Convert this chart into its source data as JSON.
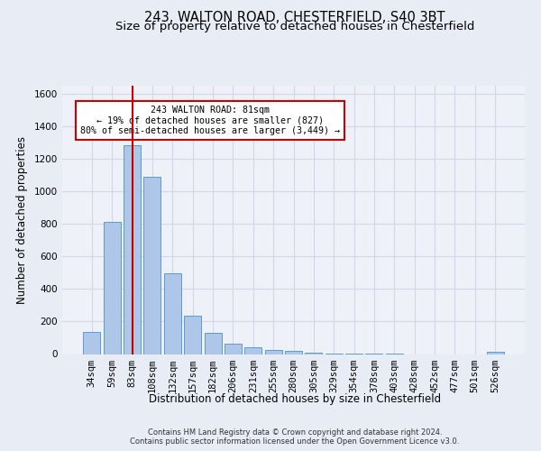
{
  "title_line1": "243, WALTON ROAD, CHESTERFIELD, S40 3BT",
  "title_line2": "Size of property relative to detached houses in Chesterfield",
  "xlabel": "Distribution of detached houses by size in Chesterfield",
  "ylabel": "Number of detached properties",
  "footer_line1": "Contains HM Land Registry data © Crown copyright and database right 2024.",
  "footer_line2": "Contains public sector information licensed under the Open Government Licence v3.0.",
  "bar_labels": [
    "34sqm",
    "59sqm",
    "83sqm",
    "108sqm",
    "132sqm",
    "157sqm",
    "182sqm",
    "206sqm",
    "231sqm",
    "255sqm",
    "280sqm",
    "305sqm",
    "329sqm",
    "354sqm",
    "378sqm",
    "403sqm",
    "428sqm",
    "452sqm",
    "477sqm",
    "501sqm",
    "526sqm"
  ],
  "bar_values": [
    135,
    815,
    1285,
    1090,
    495,
    238,
    128,
    65,
    40,
    27,
    18,
    8,
    3,
    2,
    1,
    1,
    0,
    0,
    0,
    0,
    13
  ],
  "bar_color": "#aec6e8",
  "bar_edge_color": "#5b9bd5",
  "property_line_x": 2,
  "property_line_color": "#cc0000",
  "annotation_text": "243 WALTON ROAD: 81sqm\n← 19% of detached houses are smaller (827)\n80% of semi-detached houses are larger (3,449) →",
  "annotation_box_color": "#ffffff",
  "annotation_box_edge": "#cc0000",
  "ylim": [
    0,
    1650
  ],
  "yticks": [
    0,
    200,
    400,
    600,
    800,
    1000,
    1200,
    1400,
    1600
  ],
  "grid_color": "#d0d8e8",
  "bg_color": "#e8edf5",
  "plot_bg_color": "#eef1f8",
  "title_fontsize": 10.5,
  "subtitle_fontsize": 9.5,
  "axis_label_fontsize": 8.5,
  "tick_fontsize": 7.5,
  "footer_fontsize": 6.0
}
